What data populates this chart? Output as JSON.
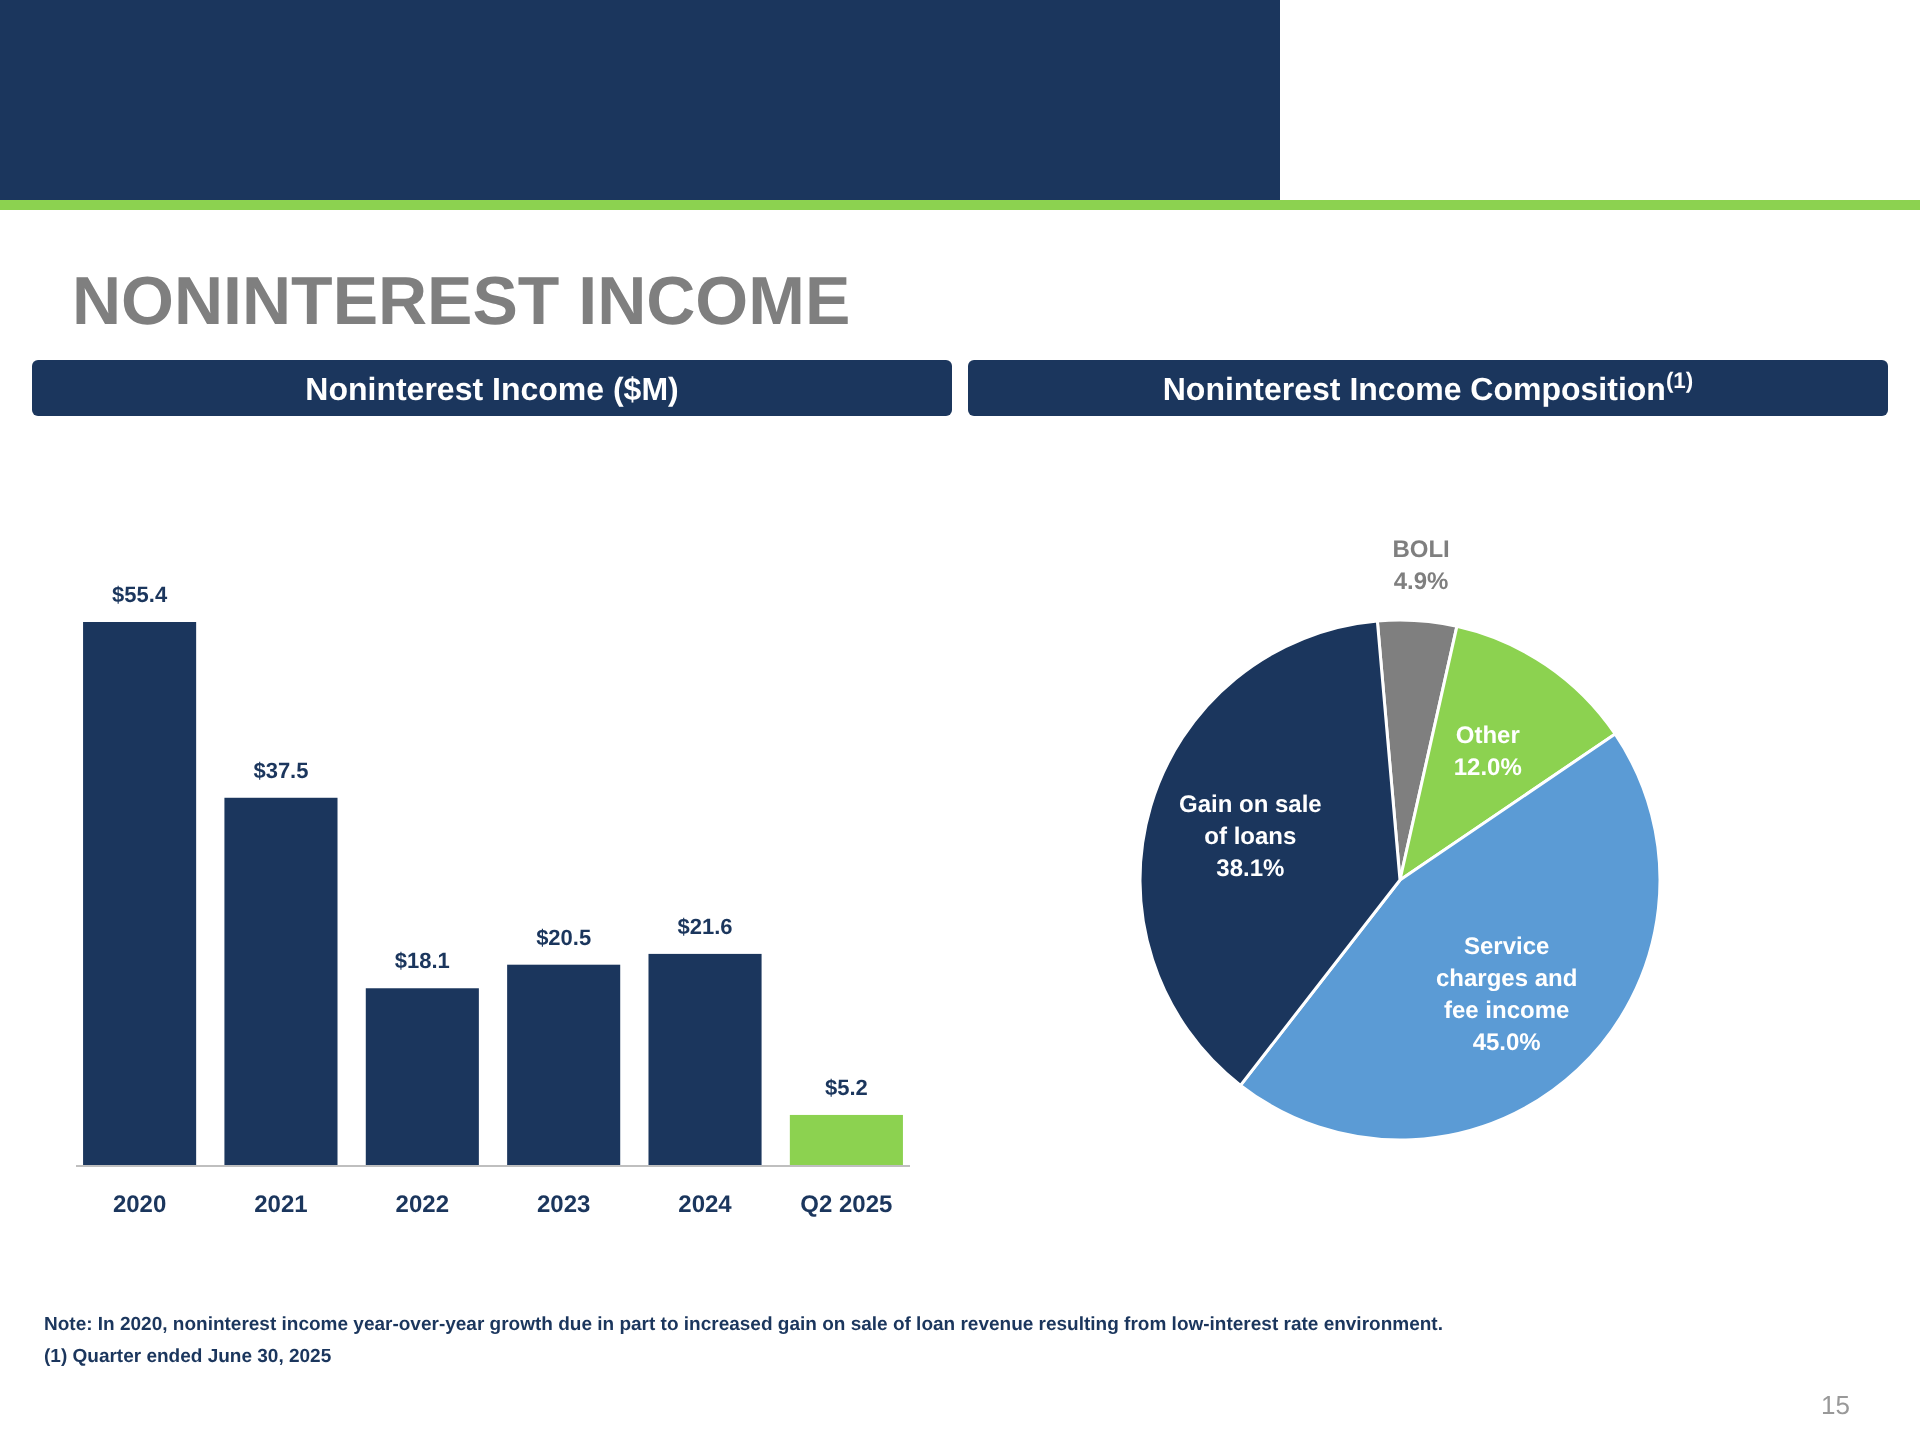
{
  "chart_data": [
    {
      "type": "bar",
      "title": "NONINTEREST INCOME",
      "subtitle": "Noninterest Income ($M)",
      "categories": [
        "2020",
        "2021",
        "2022",
        "2023",
        "2024",
        "Q2 2025"
      ],
      "values": [
        55.4,
        37.5,
        18.1,
        20.5,
        21.6,
        5.2
      ],
      "colors": [
        "#1b365d",
        "#1b365d",
        "#1b365d",
        "#1b365d",
        "#1b365d",
        "#8cd250"
      ],
      "value_labels": [
        "$55.4",
        "$37.5",
        "$18.1",
        "$20.5",
        "$21.6",
        "$5.2"
      ]
    },
    {
      "type": "pie",
      "subtitle": "Noninterest Income Composition$^{(1)}$",
      "categories": [
        "BOLI",
        "Other",
        "Service charges and fee income",
        "Gain on sale of loans"
      ],
      "values": [
        4.9,
        12.0,
        45.0,
        38.1
      ],
      "colors": [
        "#7f7f7f",
        "#8cd250",
        "#5b9bd5",
        "#1b365d"
      ],
      "value_labels": [
        "4.9%",
        "12.0%",
        "45.0%",
        "38.1%"
      ],
      "annotations": [
        "Note:  In 2020, noninterest income year-over-year growth due in part to increased gain on sale of loan revenue resulting from low-interest rate environment.",
        "(1)   Quarter ended June 30, 2025",
        "15"
      ]
    }
  ]
}
